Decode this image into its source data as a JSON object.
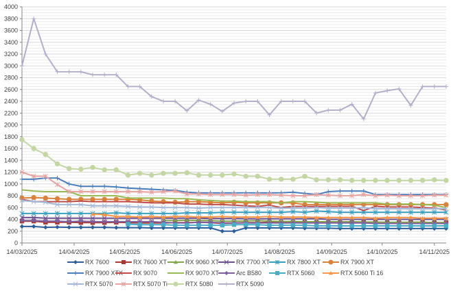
{
  "chart_data": {
    "type": "line",
    "title": "",
    "xlabel": "",
    "ylabel": "",
    "ylim": [
      0,
      4000
    ],
    "ytick_step": 200,
    "grid": true,
    "legend_position": "bottom",
    "x_start": "14/03/2025",
    "x_interval_days": 7,
    "x_tick_labels": [
      "14/03/2025",
      "14/04/2025",
      "14/05/2025",
      "14/06/2025",
      "14/07/2025",
      "14/08/2025",
      "14/09/2025",
      "14/10/2025",
      "14/11/2025"
    ],
    "y_tick_labels": [
      "0",
      "200",
      "400",
      "600",
      "800",
      "1000",
      "1200",
      "1400",
      "1600",
      "1800",
      "2000",
      "2200",
      "2400",
      "2600",
      "2800",
      "3000",
      "3200",
      "3400",
      "3600",
      "3800",
      "4000"
    ],
    "series": [
      {
        "name": "RX 7600",
        "color": "#2e5e9a",
        "marker": "diamond",
        "values": [
          280,
          280,
          265,
          270,
          265,
          265,
          265,
          265,
          260,
          260,
          260,
          255,
          255,
          255,
          255,
          255,
          255,
          200,
          200,
          255,
          255,
          255,
          255,
          255,
          250,
          250,
          250,
          245,
          245,
          245,
          245,
          245,
          245,
          245,
          245,
          245,
          245
        ]
      },
      {
        "name": "RX 7600 XT",
        "color": "#a83a36",
        "marker": "square",
        "values": [
          370,
          370,
          350,
          350,
          350,
          345,
          345,
          345,
          350,
          345,
          340,
          340,
          340,
          345,
          345,
          350,
          345,
          330,
          340,
          345,
          345,
          350,
          345,
          345,
          350,
          350,
          345,
          345,
          345,
          350,
          350,
          345,
          345,
          350,
          350,
          345,
          345
        ]
      },
      {
        "name": "RX 9060 XT",
        "color": "#84a64a",
        "marker": "triangle",
        "values": [
          null,
          null,
          null,
          null,
          null,
          null,
          null,
          null,
          null,
          null,
          null,
          null,
          380,
          380,
          385,
          380,
          380,
          370,
          370,
          375,
          380,
          370,
          365,
          365,
          360,
          360,
          360,
          360,
          360,
          355,
          355,
          350,
          350,
          350,
          350,
          345,
          345
        ]
      },
      {
        "name": "RX 7700 XT",
        "color": "#6a4f8f",
        "marker": "x",
        "values": [
          430,
          430,
          420,
          420,
          420,
          420,
          420,
          420,
          420,
          420,
          420,
          420,
          420,
          420,
          420,
          420,
          415,
          415,
          415,
          410,
          410,
          410,
          410,
          410,
          410,
          410,
          400,
          400,
          400,
          400,
          400,
          400,
          400,
          400,
          400,
          400,
          400
        ]
      },
      {
        "name": "RX 7800 XT",
        "color": "#3a9fbf",
        "marker": "asterisk",
        "values": [
          500,
          500,
          500,
          500,
          500,
          500,
          500,
          500,
          510,
          500,
          500,
          500,
          500,
          500,
          510,
          510,
          510,
          520,
          520,
          520,
          520,
          520,
          520,
          530,
          520,
          540,
          530,
          520,
          520,
          520,
          520,
          520,
          520,
          520,
          520,
          520,
          520
        ]
      },
      {
        "name": "RX 7900 XT",
        "color": "#d9823b",
        "marker": "circle",
        "values": [
          760,
          770,
          760,
          750,
          740,
          740,
          740,
          740,
          740,
          740,
          730,
          710,
          700,
          690,
          700,
          700,
          690,
          680,
          690,
          680,
          680,
          680,
          680,
          680,
          650,
          650,
          650,
          650,
          650,
          650,
          650,
          650,
          650,
          650,
          650,
          650,
          650
        ]
      },
      {
        "name": "RX 7900 XTX",
        "color": "#4a7ebb",
        "marker": "plus",
        "values": [
          1080,
          1080,
          1100,
          1100,
          1000,
          960,
          960,
          960,
          950,
          930,
          920,
          910,
          900,
          890,
          860,
          850,
          850,
          850,
          850,
          850,
          850,
          850,
          850,
          860,
          840,
          820,
          870,
          880,
          880,
          880,
          820,
          820,
          820,
          820,
          820,
          820,
          820
        ]
      },
      {
        "name": "RX 9070",
        "color": "#be4b48",
        "marker": "none",
        "values": [
          740,
          700,
          700,
          700,
          700,
          710,
          700,
          700,
          700,
          700,
          690,
          680,
          680,
          680,
          660,
          660,
          650,
          650,
          640,
          630,
          620,
          640,
          600,
          620,
          620,
          620,
          620,
          620,
          620,
          550,
          620,
          610,
          610,
          610,
          600,
          590,
          560
        ]
      },
      {
        "name": "RX 9070 XT",
        "color": "#98b954",
        "marker": "none",
        "values": [
          900,
          880,
          870,
          870,
          870,
          800,
          800,
          800,
          800,
          760,
          760,
          760,
          760,
          750,
          750,
          730,
          720,
          710,
          710,
          700,
          700,
          700,
          680,
          700,
          700,
          690,
          680,
          680,
          680,
          680,
          680,
          660,
          660,
          660,
          650,
          640,
          600
        ]
      },
      {
        "name": "Arc B580",
        "color": "#7d5fa0",
        "marker": "diamond",
        "values": [
          380,
          380,
          370,
          370,
          360,
          370,
          360,
          360,
          360,
          360,
          360,
          360,
          350,
          340,
          340,
          350,
          350,
          340,
          340,
          340,
          340,
          340,
          340,
          340,
          340,
          340,
          340,
          340,
          340,
          340,
          330,
          330,
          330,
          330,
          330,
          330,
          330
        ]
      },
      {
        "name": "RTX 5060",
        "color": "#4bacc6",
        "marker": "square",
        "values": [
          null,
          null,
          null,
          null,
          null,
          null,
          null,
          null,
          null,
          320,
          310,
          310,
          310,
          300,
          300,
          300,
          300,
          300,
          310,
          310,
          310,
          300,
          300,
          300,
          300,
          290,
          290,
          290,
          290,
          290,
          290,
          290,
          290,
          290,
          290,
          290,
          290
        ]
      },
      {
        "name": "RTX 5060 Ti 16",
        "color": "#f79646",
        "marker": "triangle",
        "values": [
          null,
          null,
          null,
          null,
          null,
          null,
          490,
          480,
          450,
          450,
          440,
          450,
          440,
          450,
          450,
          440,
          440,
          450,
          440,
          440,
          440,
          450,
          440,
          440,
          440,
          430,
          430,
          430,
          430,
          430,
          420,
          430,
          430,
          430,
          420,
          420,
          420
        ]
      },
      {
        "name": "RTX 5070",
        "color": "#a5b8d8",
        "marker": "x",
        "values": [
          720,
          700,
          690,
          650,
          650,
          650,
          630,
          630,
          630,
          620,
          610,
          610,
          600,
          600,
          600,
          590,
          600,
          600,
          600,
          600,
          600,
          600,
          590,
          590,
          590,
          600,
          590,
          590,
          590,
          600,
          580,
          580,
          580,
          580,
          580,
          580,
          580
        ]
      },
      {
        "name": "RTX 5070 Ti",
        "color": "#e6a3a1",
        "marker": "asterisk",
        "values": [
          1200,
          1130,
          1130,
          990,
          870,
          870,
          870,
          870,
          870,
          870,
          870,
          860,
          870,
          880,
          830,
          830,
          820,
          820,
          820,
          810,
          820,
          820,
          810,
          800,
          800,
          820,
          810,
          800,
          800,
          820,
          800,
          810,
          800,
          800,
          800,
          810,
          810
        ]
      },
      {
        "name": "RTX 5080",
        "color": "#c3d6a3",
        "marker": "circle",
        "values": [
          1750,
          1600,
          1500,
          1340,
          1260,
          1250,
          1280,
          1240,
          1240,
          1150,
          1180,
          1150,
          1180,
          1180,
          1190,
          1150,
          1150,
          1150,
          1170,
          1130,
          1130,
          1080,
          1080,
          1080,
          1130,
          1070,
          1070,
          1070,
          1060,
          1060,
          1060,
          1060,
          1060,
          1060,
          1060,
          1070,
          1060
        ]
      },
      {
        "name": "RTX 5090",
        "color": "#b3aec9",
        "marker": "plus",
        "values": [
          3000,
          3800,
          3200,
          2900,
          2900,
          2900,
          2850,
          2850,
          2850,
          2650,
          2650,
          2480,
          2400,
          2400,
          2240,
          2420,
          2350,
          2230,
          2370,
          2400,
          2400,
          2170,
          2400,
          2400,
          2400,
          2200,
          2250,
          2250,
          2350,
          2100,
          2540,
          2580,
          2610,
          2330,
          2650,
          2650,
          2650
        ]
      }
    ]
  }
}
